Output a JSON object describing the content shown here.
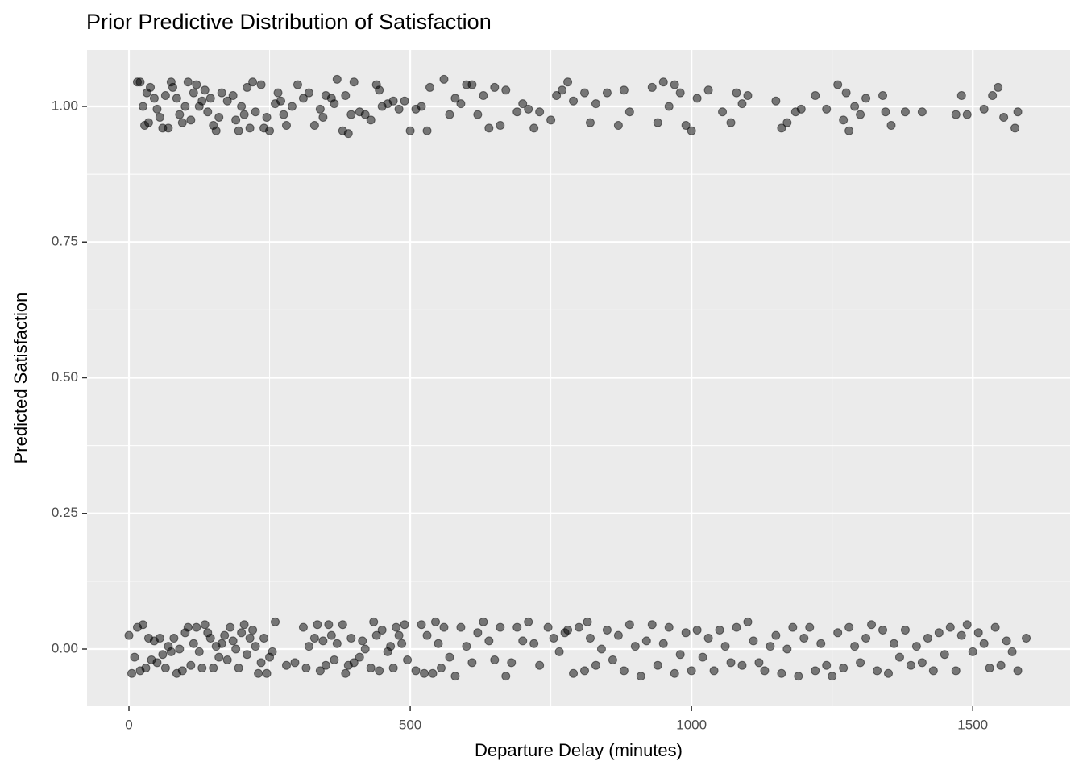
{
  "chart_data": {
    "type": "scatter",
    "title": "Prior Predictive Distribution of Satisfaction",
    "x_label": "Departure Delay (minutes)",
    "y_label": "Predicted Satisfaction",
    "xlim": [
      -74.5,
      1673
    ],
    "ylim": [
      -0.1055,
      1.104
    ],
    "xticks": [
      0,
      500,
      1000,
      1500
    ],
    "yticks": [
      {
        "value": 0,
        "label": "0.00"
      },
      0.25,
      {
        "value": 0.5,
        "label": "0.50"
      },
      0.75,
      {
        "value": 1,
        "label": "1.00"
      }
    ],
    "grid": true,
    "color": "#000000",
    "opacity": 0.5,
    "x": [
      15,
      20,
      25,
      28,
      32,
      35,
      38,
      45,
      50,
      55,
      60,
      65,
      70,
      75,
      78,
      85,
      90,
      95,
      100,
      105,
      110,
      115,
      120,
      125,
      130,
      135,
      140,
      145,
      150,
      155,
      160,
      165,
      175,
      185,
      190,
      195,
      200,
      205,
      210,
      215,
      220,
      225,
      235,
      240,
      245,
      250,
      260,
      265,
      270,
      275,
      280,
      290,
      300,
      310,
      320,
      330,
      340,
      345,
      350,
      360,
      365,
      370,
      380,
      385,
      390,
      395,
      400,
      410,
      420,
      430,
      440,
      445,
      450,
      460,
      470,
      480,
      490,
      500,
      510,
      520,
      530,
      535,
      560,
      570,
      580,
      590,
      600,
      610,
      620,
      630,
      640,
      650,
      660,
      670,
      690,
      700,
      710,
      720,
      730,
      750,
      760,
      770,
      780,
      790,
      810,
      820,
      830,
      850,
      870,
      880,
      890,
      930,
      940,
      950,
      960,
      970,
      980,
      990,
      1000,
      1010,
      1030,
      1055,
      1070,
      1080,
      1090,
      1100,
      1150,
      1160,
      1170,
      1185,
      1195,
      1220,
      1240,
      1260,
      1270,
      1275,
      1280,
      1290,
      1300,
      1310,
      1340,
      1345,
      1355,
      1380,
      1410,
      1470,
      1480,
      1490,
      1520,
      1535,
      1545,
      1555,
      1575,
      1580,
      0,
      5,
      10,
      15,
      20,
      25,
      30,
      35,
      40,
      45,
      50,
      55,
      60,
      65,
      70,
      75,
      80,
      85,
      90,
      95,
      100,
      105,
      110,
      115,
      120,
      125,
      130,
      135,
      140,
      145,
      150,
      155,
      160,
      165,
      170,
      175,
      180,
      185,
      190,
      195,
      200,
      205,
      210,
      215,
      220,
      225,
      230,
      235,
      240,
      245,
      250,
      255,
      260,
      280,
      295,
      310,
      315,
      320,
      330,
      335,
      340,
      345,
      350,
      355,
      360,
      365,
      370,
      380,
      385,
      390,
      395,
      400,
      410,
      415,
      420,
      430,
      435,
      440,
      445,
      450,
      460,
      465,
      470,
      475,
      480,
      485,
      490,
      495,
      510,
      520,
      525,
      530,
      540,
      545,
      550,
      555,
      560,
      570,
      580,
      590,
      600,
      610,
      620,
      630,
      640,
      650,
      660,
      670,
      680,
      690,
      700,
      710,
      720,
      730,
      745,
      755,
      765,
      775,
      780,
      790,
      800,
      810,
      815,
      820,
      830,
      840,
      850,
      860,
      870,
      880,
      890,
      900,
      910,
      920,
      930,
      940,
      950,
      960,
      970,
      980,
      990,
      1000,
      1010,
      1020,
      1030,
      1040,
      1050,
      1060,
      1070,
      1080,
      1090,
      1100,
      1110,
      1120,
      1130,
      1140,
      1150,
      1160,
      1170,
      1180,
      1190,
      1200,
      1210,
      1220,
      1230,
      1240,
      1250,
      1260,
      1270,
      1280,
      1290,
      1300,
      1310,
      1320,
      1330,
      1340,
      1350,
      1360,
      1370,
      1380,
      1390,
      1400,
      1410,
      1420,
      1430,
      1440,
      1450,
      1460,
      1470,
      1480,
      1490,
      1500,
      1510,
      1520,
      1530,
      1540,
      1550,
      1560,
      1570,
      1580,
      1595
    ],
    "series": [
      {
        "values": [
          1.045,
          1.045,
          1.0,
          0.965,
          1.025,
          0.97,
          1.035,
          1.015,
          0.995,
          0.98,
          0.96,
          1.02,
          0.96,
          1.045,
          1.035,
          1.015,
          0.985,
          0.97,
          1.0,
          1.045,
          0.975,
          1.025,
          1.04,
          1.0,
          1.01,
          1.03,
          0.99,
          1.015,
          0.965,
          0.955,
          0.98,
          1.025,
          1.01,
          1.02,
          0.975,
          0.955,
          1.0,
          0.985,
          1.035,
          0.96,
          1.045,
          0.99,
          1.04,
          0.96,
          0.98,
          0.955,
          1.005,
          1.025,
          1.01,
          0.985,
          0.965,
          1.0,
          1.04,
          1.015,
          1.025,
          0.965,
          0.995,
          0.98,
          1.02,
          1.015,
          1.005,
          1.05,
          0.955,
          1.02,
          0.95,
          0.985,
          1.045,
          0.99,
          0.985,
          0.975,
          1.04,
          1.03,
          1.0,
          1.005,
          1.01,
          0.995,
          1.01,
          0.955,
          0.995,
          1.0,
          0.955,
          1.035,
          1.05,
          0.985,
          1.015,
          1.005,
          1.04,
          1.04,
          0.985,
          1.02,
          0.96,
          1.035,
          0.965,
          1.03,
          0.99,
          1.005,
          0.995,
          0.96,
          0.99,
          0.975,
          1.02,
          1.03,
          1.045,
          1.01,
          1.025,
          0.97,
          1.005,
          1.025,
          0.965,
          1.03,
          0.99,
          1.035,
          0.97,
          1.045,
          1.0,
          1.04,
          1.025,
          0.965,
          0.955,
          1.015,
          1.03,
          0.99,
          0.97,
          1.025,
          1.005,
          1.02,
          1.01,
          0.96,
          0.97,
          0.99,
          0.995,
          1.02,
          0.995,
          1.04,
          0.975,
          1.025,
          0.955,
          1.0,
          0.985,
          1.015,
          1.02,
          0.99,
          0.965,
          0.99,
          0.99,
          0.985,
          1.02,
          0.985,
          0.995,
          1.02,
          1.035,
          0.98,
          0.96,
          0.99,
          0.025,
          -0.045,
          -0.015,
          0.04,
          -0.04,
          0.045,
          -0.035,
          0.02,
          -0.02,
          0.015,
          -0.025,
          0.02,
          -0.01,
          -0.035,
          0.005,
          -0.005,
          0.02,
          -0.045,
          0.0,
          -0.04,
          0.03,
          0.04,
          -0.03,
          0.01,
          0.04,
          -0.005,
          -0.035,
          0.045,
          0.03,
          0.02,
          -0.035,
          0.005,
          -0.015,
          0.01,
          0.025,
          -0.02,
          0.04,
          0.015,
          0.0,
          -0.035,
          0.03,
          0.045,
          -0.01,
          0.02,
          0.035,
          0.005,
          -0.045,
          -0.025,
          0.02,
          -0.045,
          -0.015,
          -0.005,
          0.05,
          -0.03,
          -0.025,
          0.04,
          -0.035,
          0.005,
          0.02,
          0.045,
          -0.04,
          0.015,
          -0.03,
          0.045,
          0.025,
          -0.02,
          0.01,
          0.045,
          -0.045,
          -0.03,
          0.02,
          -0.025,
          -0.015,
          0.015,
          0.0,
          -0.035,
          0.05,
          0.025,
          -0.04,
          0.035,
          -0.005,
          0.005,
          -0.035,
          0.04,
          0.025,
          0.01,
          0.045,
          -0.02,
          -0.04,
          0.045,
          -0.045,
          0.025,
          -0.045,
          0.05,
          0.01,
          -0.035,
          0.04,
          -0.015,
          -0.05,
          0.04,
          0.005,
          -0.025,
          0.03,
          0.05,
          0.015,
          -0.02,
          0.04,
          -0.05,
          -0.025,
          0.04,
          0.015,
          0.05,
          0.01,
          -0.03,
          0.04,
          0.02,
          -0.005,
          0.03,
          0.035,
          -0.045,
          0.04,
          -0.04,
          0.05,
          0.02,
          -0.03,
          0.0,
          0.035,
          -0.02,
          0.025,
          -0.04,
          0.045,
          0.005,
          -0.05,
          0.015,
          0.045,
          -0.03,
          0.01,
          0.04,
          -0.045,
          -0.01,
          0.03,
          -0.04,
          0.035,
          -0.015,
          0.02,
          -0.04,
          0.035,
          0.005,
          -0.025,
          0.04,
          -0.03,
          0.05,
          0.015,
          -0.025,
          -0.04,
          0.005,
          0.025,
          -0.045,
          0.0,
          0.04,
          -0.05,
          0.02,
          0.04,
          -0.04,
          0.01,
          -0.03,
          -0.05,
          0.03,
          -0.035,
          0.04,
          0.005,
          -0.025,
          0.02,
          0.045,
          -0.04,
          0.035,
          -0.045,
          0.01,
          -0.015,
          0.035,
          -0.03,
          0.005,
          -0.025,
          0.02,
          -0.04,
          0.03,
          -0.01,
          0.04,
          -0.04,
          0.025,
          0.045,
          -0.005,
          0.03,
          0.01,
          -0.035,
          0.04,
          -0.03,
          0.015,
          -0.005,
          -0.04,
          0.02
        ]
      }
    ]
  }
}
